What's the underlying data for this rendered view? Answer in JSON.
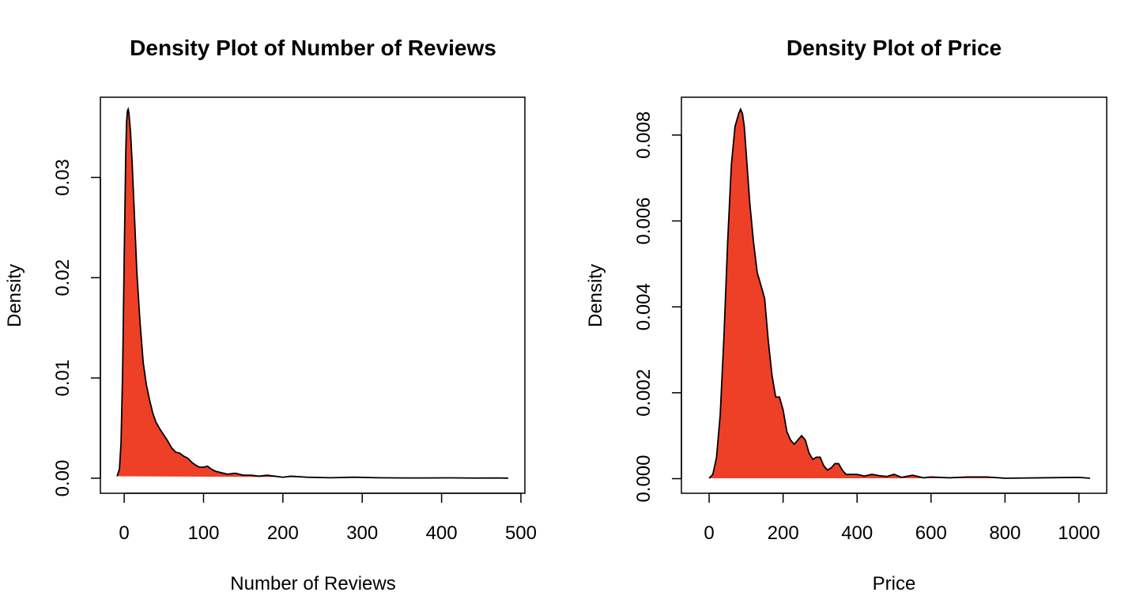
{
  "chart_data": [
    {
      "type": "area",
      "title": "Density Plot of Number of Reviews",
      "xlabel": "Number of Reviews",
      "ylabel": "Density",
      "xlim": [
        -30,
        505
      ],
      "ylim": [
        -0.0015,
        0.038
      ],
      "x_ticks": [
        0,
        100,
        200,
        300,
        400,
        500
      ],
      "x_tick_labels": [
        "0",
        "100",
        "200",
        "300",
        "400",
        "500"
      ],
      "y_ticks": [
        0,
        0.01,
        0.02,
        0.03
      ],
      "y_tick_labels": [
        "0.00",
        "0.01",
        "0.02",
        "0.03"
      ],
      "grid": false,
      "fill_color": "#EE4027",
      "line_color": "#000000",
      "series": [
        {
          "x": [
            -9,
            -6,
            -4,
            -2,
            0,
            2,
            3,
            4,
            5,
            6,
            8,
            10,
            13,
            16,
            20,
            24,
            28,
            32,
            36,
            40,
            45,
            50,
            55,
            60,
            65,
            70,
            75,
            80,
            85,
            90,
            95,
            100,
            105,
            110,
            115,
            120,
            130,
            140,
            150,
            160,
            170,
            180,
            190,
            200,
            210,
            230,
            260,
            290,
            320,
            350,
            380,
            410,
            440,
            470,
            484
          ],
          "y": [
            0.0002,
            0.0009,
            0.0035,
            0.0105,
            0.022,
            0.0325,
            0.0355,
            0.0366,
            0.0368,
            0.0364,
            0.0345,
            0.0315,
            0.026,
            0.0205,
            0.0155,
            0.0115,
            0.0093,
            0.0078,
            0.0065,
            0.0056,
            0.0049,
            0.0043,
            0.0037,
            0.003,
            0.0026,
            0.0025,
            0.0022,
            0.002,
            0.0016,
            0.0013,
            0.0011,
            0.0011,
            0.0012,
            0.0009,
            0.0007,
            0.0006,
            0.0004,
            0.0005,
            0.0003,
            0.0003,
            0.0002,
            0.0003,
            0.0002,
            0.0001,
            0.0002,
            0.0001,
            5e-05,
            0.0001,
            5e-05,
            3e-05,
            3e-05,
            4e-05,
            2e-05,
            3e-05,
            1e-05
          ]
        }
      ]
    },
    {
      "type": "area",
      "title": "Density Plot of Price",
      "xlabel": "Price",
      "ylabel": "Density",
      "xlim": [
        -75,
        1075
      ],
      "ylim": [
        -0.00034,
        0.00888
      ],
      "x_ticks": [
        0,
        200,
        400,
        600,
        800,
        1000
      ],
      "x_tick_labels": [
        "0",
        "200",
        "400",
        "600",
        "800",
        "1000"
      ],
      "y_ticks": [
        0,
        0.002,
        0.004,
        0.006,
        0.008
      ],
      "y_tick_labels": [
        "0.000",
        "0.002",
        "0.004",
        "0.006",
        "0.008"
      ],
      "grid": false,
      "fill_color": "#EE4027",
      "line_color": "#000000",
      "series": [
        {
          "x": [
            0,
            10,
            20,
            30,
            40,
            50,
            60,
            70,
            80,
            85,
            90,
            95,
            100,
            110,
            120,
            130,
            140,
            150,
            160,
            170,
            180,
            190,
            200,
            210,
            220,
            230,
            240,
            250,
            260,
            270,
            280,
            290,
            300,
            310,
            320,
            330,
            340,
            350,
            360,
            370,
            380,
            400,
            420,
            440,
            460,
            480,
            500,
            520,
            550,
            580,
            600,
            650,
            700,
            750,
            800,
            900,
            1000,
            1030
          ],
          "y": [
            1e-05,
            0.0001,
            0.0005,
            0.0015,
            0.0033,
            0.0055,
            0.0073,
            0.0082,
            0.0085,
            0.0086,
            0.0085,
            0.0082,
            0.0076,
            0.0064,
            0.0055,
            0.0048,
            0.0045,
            0.0042,
            0.0032,
            0.0024,
            0.0019,
            0.0019,
            0.0016,
            0.0011,
            0.0009,
            0.0008,
            0.0009,
            0.001,
            0.0009,
            0.0006,
            0.00045,
            0.0005,
            0.0005,
            0.0003,
            0.0002,
            0.00025,
            0.00035,
            0.00035,
            0.0002,
            0.0001,
            0.0001,
            0.0001,
            6e-05,
            0.0001,
            7e-05,
            5e-05,
            0.0001,
            3e-05,
            8e-05,
            2e-05,
            4e-05,
            2e-05,
            4e-05,
            4e-05,
            1e-05,
            2e-05,
            3e-05,
            1e-05
          ]
        }
      ]
    }
  ]
}
